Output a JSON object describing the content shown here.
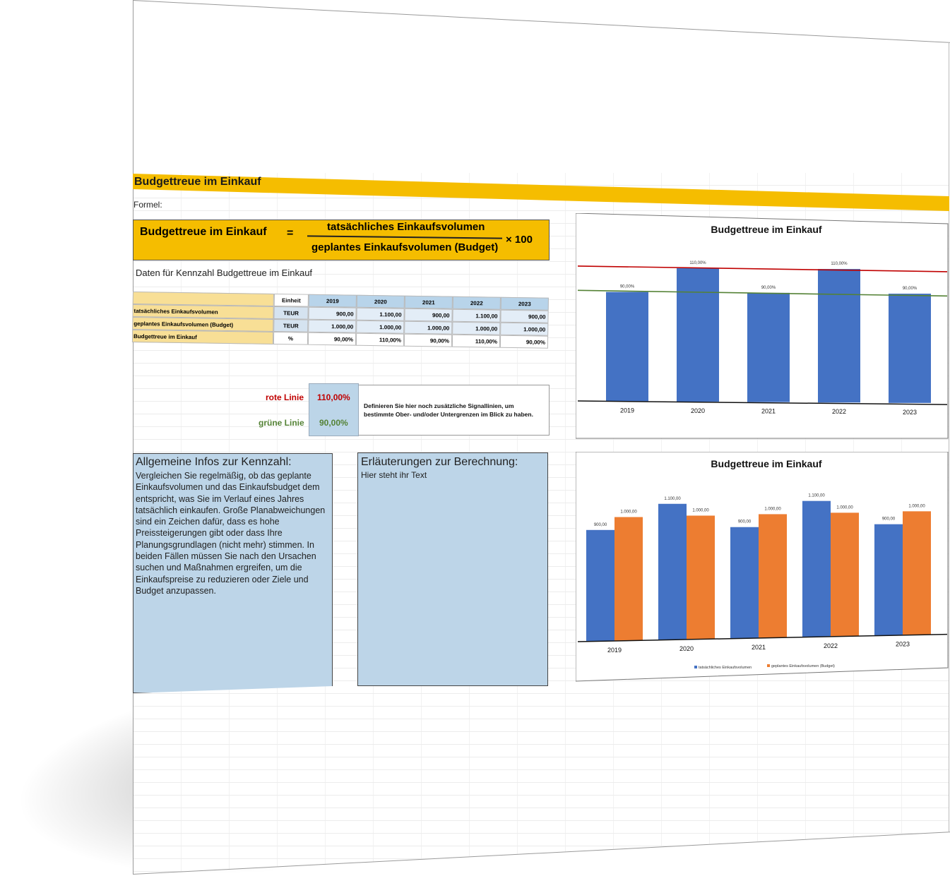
{
  "sheet": {
    "banner_title": "Budgettreue im Einkauf",
    "formel_label": "Formel:",
    "formula": {
      "left": "Budgettreue im Einkauf",
      "equals": "=",
      "numerator": "tatsächliches Einkaufsvolumen",
      "denominator": "geplantes Einkaufsvolumen (Budget)",
      "multiplier": "× 100"
    },
    "data_heading": "Daten für Kennzahl Budgettreue im Einkauf"
  },
  "table": {
    "unit_header": "Einheit",
    "years": [
      "2019",
      "2020",
      "2021",
      "2022",
      "2023"
    ],
    "rows": [
      {
        "label": "tatsächliches Einkaufsvolumen",
        "unit": "TEUR",
        "values": [
          "900,00",
          "1.100,00",
          "900,00",
          "1.100,00",
          "900,00"
        ]
      },
      {
        "label": "geplantes Einkaufsvolumen (Budget)",
        "unit": "TEUR",
        "values": [
          "1.000,00",
          "1.000,00",
          "1.000,00",
          "1.000,00",
          "1.000,00"
        ]
      },
      {
        "label": "Budgettreue im Einkauf",
        "unit": "%",
        "values": [
          "90,00%",
          "110,00%",
          "90,00%",
          "110,00%",
          "90,00%"
        ]
      }
    ]
  },
  "signals": {
    "red_label": "rote Linie",
    "red_value": "110,00%",
    "green_label": "grüne Linie",
    "green_value": "90,00%",
    "hint": "Definieren Sie hier noch zusätzliche Signallinien, um bestimmte Ober- und/oder Untergrenzen im Blick zu haben.",
    "red_color": "#c00000",
    "green_color": "#548235"
  },
  "info": {
    "title": "Allgemeine Infos zur Kennzahl:",
    "body": "Vergleichen Sie regelmäßig, ob das geplante Einkaufsvolumen und das Einkaufsbudget dem entspricht, was Sie im Verlauf eines Jahres tatsächlich einkaufen. Große Planabweichungen sind ein Zeichen dafür, dass es hohe Preissteigerungen gibt oder dass Ihre Planungsgrundlagen (nicht mehr) stimmen. In beiden Fällen müssen Sie nach den Ursachen suchen und Maßnahmen ergreifen, um die Einkaufspreise zu reduzieren oder Ziele und Budget anzupassen."
  },
  "calc": {
    "title": "Erläuterungen zur Berechnung:",
    "body": "Hier steht ihr Text"
  },
  "colors": {
    "accent": "#f5bd00",
    "blue": "#4472c4",
    "orange": "#ed7d31"
  },
  "chart_data": [
    {
      "type": "bar",
      "title": "Budgettreue im Einkauf",
      "categories": [
        "2019",
        "2020",
        "2021",
        "2022",
        "2023"
      ],
      "values": [
        90,
        110,
        90,
        110,
        90
      ],
      "value_labels": [
        "90,00%",
        "110,00%",
        "90,00%",
        "110,00%",
        "90,00%"
      ],
      "reference_lines": [
        {
          "value": 110,
          "color": "#c00000"
        },
        {
          "value": 90,
          "color": "#548235"
        }
      ],
      "ylim": [
        0,
        125
      ]
    },
    {
      "type": "bar",
      "title": "Budgettreue im Einkauf",
      "categories": [
        "2019",
        "2020",
        "2021",
        "2022",
        "2023"
      ],
      "series": [
        {
          "name": "tatsächliches Einkaufsvolumen",
          "color": "#4472c4",
          "values": [
            900,
            1100,
            900,
            1100,
            900
          ],
          "labels": [
            "900,00",
            "1.100,00",
            "900,00",
            "1.100,00",
            "900,00"
          ]
        },
        {
          "name": "geplantes Einkaufsvolumen (Budget)",
          "color": "#ed7d31",
          "values": [
            1000,
            1000,
            1000,
            1000,
            1000
          ],
          "labels": [
            "1.000,00",
            "1.000,00",
            "1.000,00",
            "1.000,00",
            "1.000,00"
          ]
        }
      ],
      "ylim": [
        0,
        1200
      ],
      "legend": "bottom"
    }
  ]
}
